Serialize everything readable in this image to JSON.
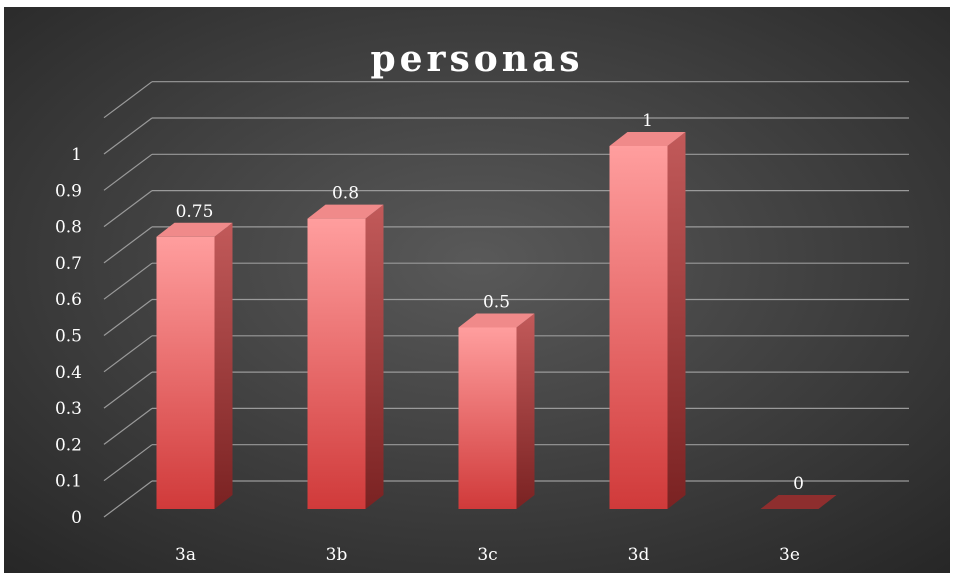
{
  "chart_data": {
    "type": "bar",
    "title": "personas",
    "categories": [
      "3a",
      "3b",
      "3c",
      "3d",
      "3e"
    ],
    "values": [
      0.75,
      0.8,
      0.5,
      1,
      0
    ],
    "data_labels": [
      "0.75",
      "0.8",
      "0.5",
      "1",
      "0"
    ],
    "ylim": [
      0,
      1.1
    ],
    "yticks": [
      "0",
      "0.1",
      "0.2",
      "0.3",
      "0.4",
      "0.5",
      "0.6",
      "0.7",
      "0.8",
      "0.9",
      "1"
    ],
    "xlabel": "",
    "ylabel": "",
    "grid": true,
    "legend": "none",
    "style": "3d-column",
    "colors": {
      "background_center": "#595959",
      "background_edge": "#262626",
      "bar_light": "#ff9e9e",
      "bar_dark": "#d03a3a",
      "bar_side": "#8e2e2e",
      "bar_top": "#f08a8a",
      "gridline": "#9a9a9a",
      "text": "#ffffff"
    }
  }
}
